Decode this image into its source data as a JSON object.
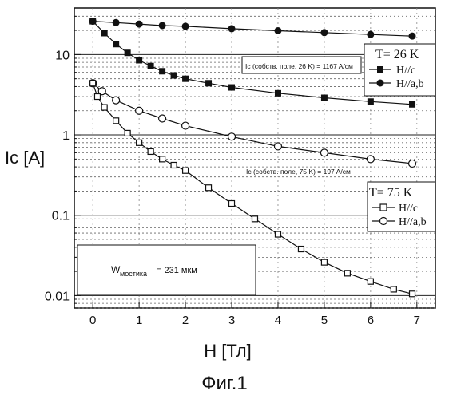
{
  "chart_data": {
    "type": "scatter",
    "ylabel": "Ic [A]",
    "xlabel": "H [Тл]",
    "caption": "Фиг.1",
    "xlim": [
      -0.4,
      7.4
    ],
    "ylim": [
      0.007,
      38
    ],
    "yscale": "log",
    "xticks": [
      0,
      1,
      2,
      3,
      4,
      5,
      6,
      7
    ],
    "xtick_labels": [
      "0",
      "1",
      "2",
      "3",
      "4",
      "5",
      "6",
      "7"
    ],
    "yticks": [
      0.01,
      0.1,
      1,
      10
    ],
    "ytick_labels": [
      "0.01",
      "0.1",
      "1",
      "10"
    ],
    "grid": true,
    "legends": [
      {
        "title": "T= 26 K",
        "entries": [
          "H//c",
          "H//a,b"
        ]
      },
      {
        "title": "T= 75 K",
        "entries": [
          "H//c",
          "H//a,b"
        ]
      }
    ],
    "annotations": [
      "Ic (собств. поле, 26 K) = 1167 A/см",
      "Ic (собств. поле, 75 K) = 197 A/см",
      "W",
      "мостика",
      "= 231 мкм"
    ],
    "series": [
      {
        "name": "H//a,b",
        "group": "T= 26 K",
        "marker": "circle-filled",
        "x": [
          0,
          0.5,
          1,
          1.5,
          2,
          3,
          4,
          5,
          6,
          6.9
        ],
        "y": [
          26,
          25,
          24,
          23,
          22.5,
          21,
          19.8,
          18.8,
          17.8,
          17
        ]
      },
      {
        "name": "H//c",
        "group": "T= 26 K",
        "marker": "square-filled",
        "x": [
          0,
          0.25,
          0.5,
          0.75,
          1,
          1.25,
          1.5,
          1.75,
          2,
          2.5,
          3,
          4,
          5,
          6,
          6.9
        ],
        "y": [
          26,
          18.5,
          13.5,
          10.5,
          8.5,
          7.2,
          6.2,
          5.5,
          5.0,
          4.4,
          3.9,
          3.3,
          2.9,
          2.6,
          2.4
        ]
      },
      {
        "name": "H//a,b",
        "group": "T= 75 K",
        "marker": "circle-open",
        "x": [
          0,
          0.2,
          0.5,
          1,
          1.5,
          2,
          3,
          4,
          5,
          6,
          6.9
        ],
        "y": [
          4.4,
          3.5,
          2.7,
          2.0,
          1.6,
          1.3,
          0.95,
          0.72,
          0.6,
          0.5,
          0.44
        ]
      },
      {
        "name": "H//c",
        "group": "T= 75 K",
        "marker": "square-open",
        "x": [
          0,
          0.1,
          0.25,
          0.5,
          0.75,
          1,
          1.25,
          1.5,
          1.75,
          2,
          2.5,
          3,
          3.5,
          4,
          4.5,
          5,
          5.5,
          6,
          6.5,
          6.9
        ],
        "y": [
          4.4,
          3.0,
          2.2,
          1.5,
          1.05,
          0.8,
          0.62,
          0.5,
          0.42,
          0.36,
          0.22,
          0.14,
          0.09,
          0.058,
          0.038,
          0.026,
          0.019,
          0.015,
          0.012,
          0.0105
        ]
      }
    ]
  }
}
